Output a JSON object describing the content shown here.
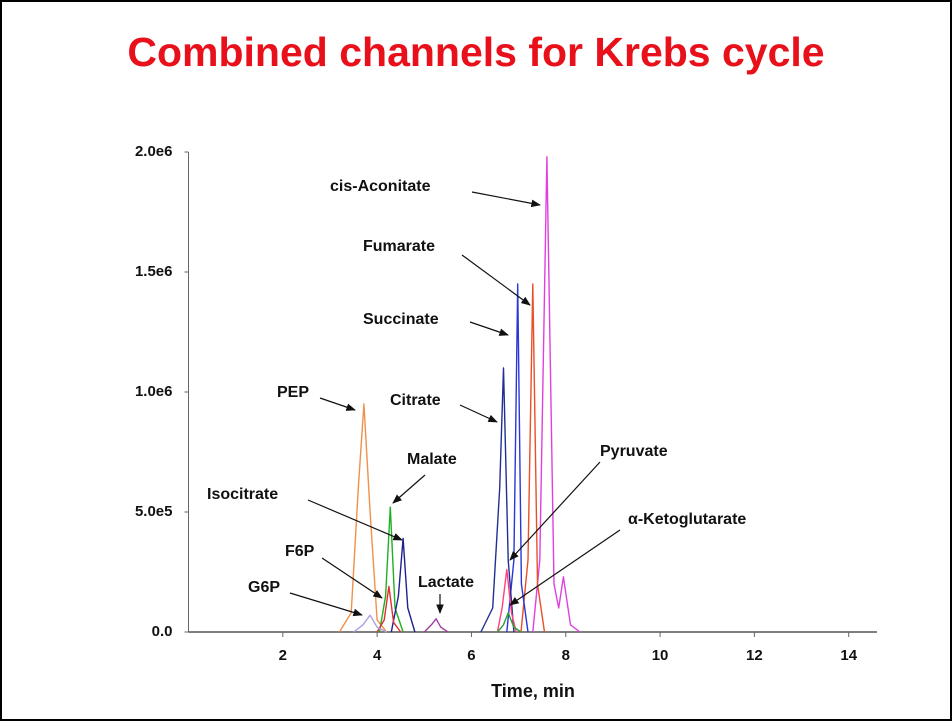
{
  "chart_data": {
    "type": "line",
    "title": "Combined channels for Krebs cycle",
    "x_label": "Time, min",
    "xlim": [
      0,
      14.6
    ],
    "xticks": [
      2,
      4,
      6,
      8,
      10,
      12,
      14
    ],
    "ylim": [
      0,
      2000000
    ],
    "yticks": [
      {
        "value": 0,
        "label": "0.0"
      },
      {
        "value": 500000,
        "label": "5.0e5"
      },
      {
        "value": 1000000,
        "label": "1.0e6"
      },
      {
        "value": 1500000,
        "label": "1.5e6"
      },
      {
        "value": 2000000,
        "label": "2.0e6"
      }
    ],
    "series": [
      {
        "name": "cis-Aconitate",
        "color": "#e040e0",
        "x": [
          7.3,
          7.45,
          7.6,
          7.75,
          7.85,
          7.95,
          8.1,
          8.3
        ],
        "values": [
          0,
          300000,
          1980000,
          200000,
          100000,
          230000,
          30000,
          0
        ]
      },
      {
        "name": "Fumarate",
        "color": "#e8502a",
        "x": [
          7.05,
          7.2,
          7.3,
          7.4,
          7.55
        ],
        "values": [
          0,
          300000,
          1450000,
          200000,
          0
        ]
      },
      {
        "name": "Succinate",
        "color": "#2838d8",
        "x": [
          6.75,
          6.9,
          6.98,
          7.06,
          7.2
        ],
        "values": [
          0,
          300000,
          1450000,
          200000,
          0
        ]
      },
      {
        "name": "Citrate",
        "color": "#203090",
        "x": [
          6.2,
          6.45,
          6.6,
          6.68,
          6.78,
          6.9
        ],
        "values": [
          0,
          100000,
          600000,
          1100000,
          300000,
          0
        ]
      },
      {
        "name": "PEP",
        "color": "#f0904a",
        "x": [
          3.2,
          3.45,
          3.6,
          3.72,
          3.85,
          4.0,
          4.2
        ],
        "values": [
          0,
          80000,
          600000,
          950000,
          500000,
          50000,
          0
        ]
      },
      {
        "name": "Malate",
        "color": "#20b020",
        "x": [
          4.05,
          4.18,
          4.28,
          4.38,
          4.55
        ],
        "values": [
          0,
          150000,
          520000,
          100000,
          0
        ]
      },
      {
        "name": "Isocitrate",
        "color": "#202090",
        "x": [
          4.3,
          4.45,
          4.55,
          4.65,
          4.8
        ],
        "values": [
          0,
          150000,
          390000,
          100000,
          0
        ]
      },
      {
        "name": "F6P",
        "color": "#e03030",
        "x": [
          4.0,
          4.15,
          4.25,
          4.35,
          4.5
        ],
        "values": [
          0,
          50000,
          190000,
          40000,
          0
        ]
      },
      {
        "name": "G6P",
        "color": "#b0a0e0",
        "x": [
          3.5,
          3.7,
          3.85,
          4.0,
          4.2
        ],
        "values": [
          0,
          30000,
          70000,
          20000,
          0
        ]
      },
      {
        "name": "Lactate",
        "color": "#a040a0",
        "x": [
          5.0,
          5.15,
          5.25,
          5.35,
          5.5
        ],
        "values": [
          0,
          30000,
          55000,
          20000,
          0
        ]
      },
      {
        "name": "Pyruvate",
        "color": "#ff4080",
        "x": [
          6.55,
          6.65,
          6.75,
          6.85,
          6.95
        ],
        "values": [
          0,
          100000,
          260000,
          80000,
          0
        ]
      },
      {
        "name": "α-Ketoglutarate",
        "color": "#30a030",
        "x": [
          6.55,
          6.68,
          6.78,
          6.9,
          7.05
        ],
        "values": [
          0,
          30000,
          80000,
          20000,
          0
        ]
      }
    ]
  }
}
